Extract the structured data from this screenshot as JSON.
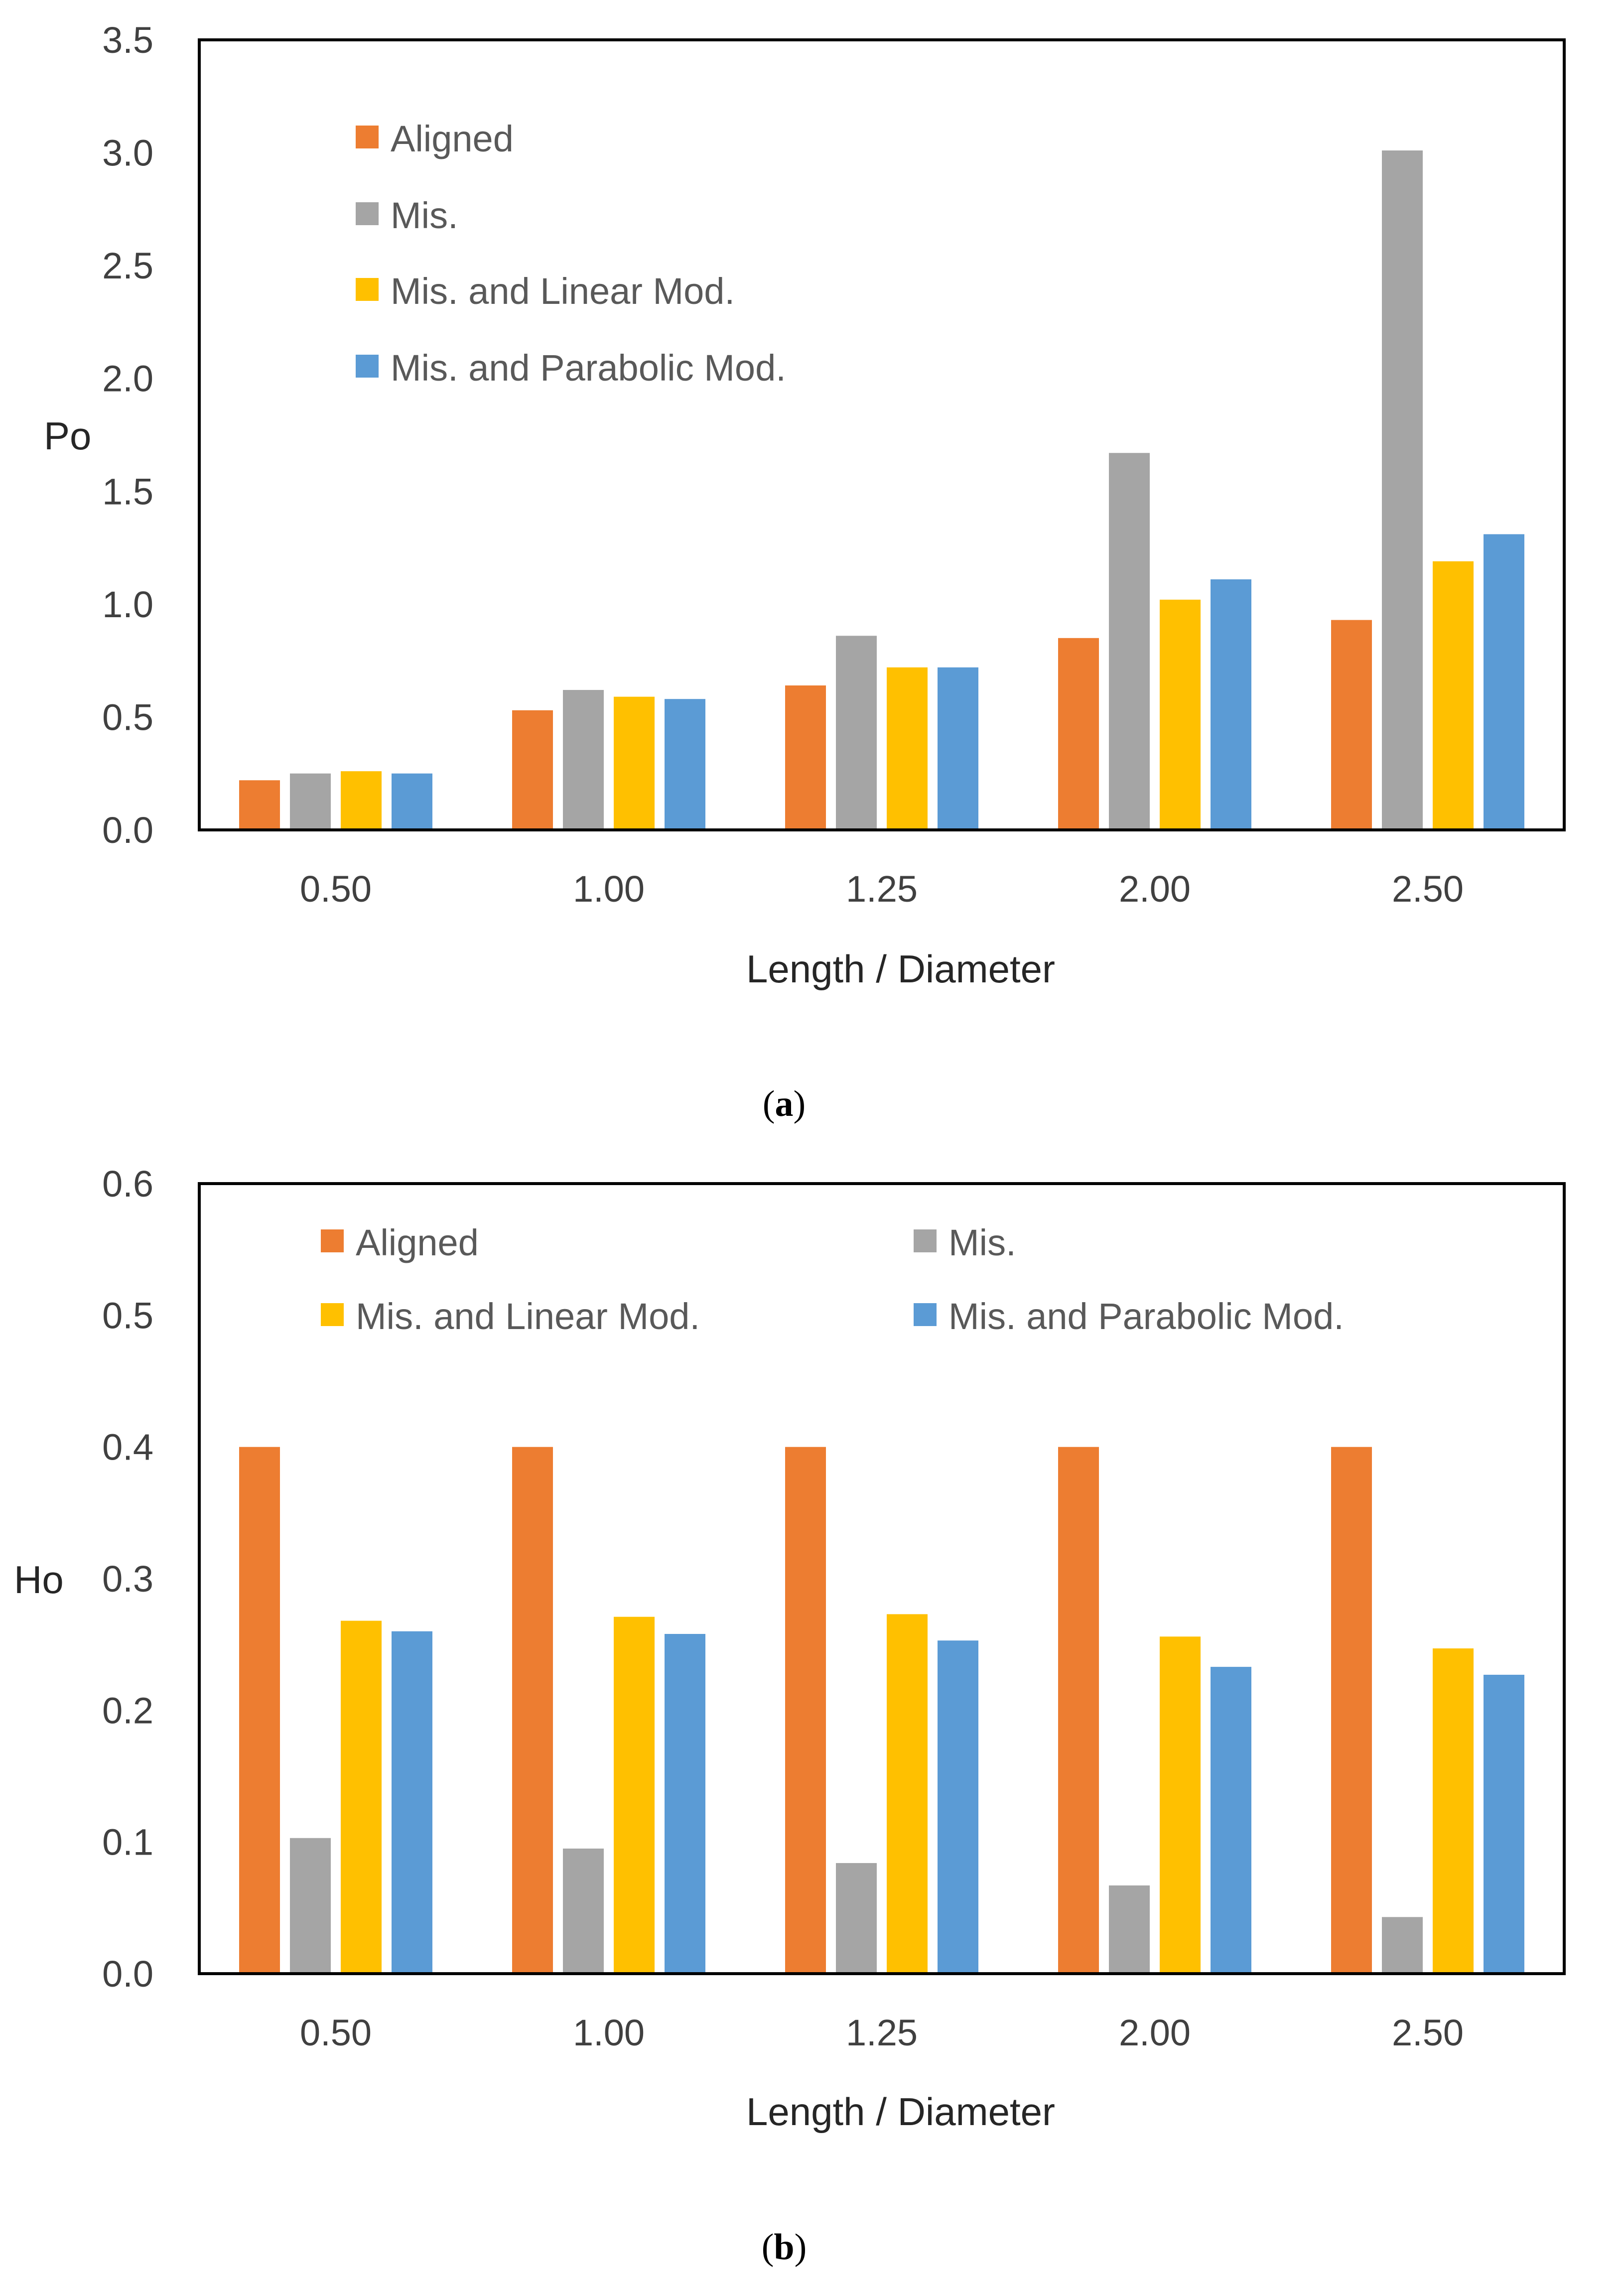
{
  "colors": {
    "Aligned": "#ED7D31",
    "Mis.": "#A5A5A5",
    "Mis. and Linear Mod.": "#FFC000",
    "Mis. and Parabolic Mod.": "#5B9BD5"
  },
  "chart_data": [
    {
      "type": "bar",
      "caption": {
        "open": "(",
        "letter": "a",
        "close": ")"
      },
      "title": "",
      "xlabel": "Length / Diameter",
      "ylabel": "Po",
      "ylim": [
        0,
        3.5
      ],
      "yticks": [
        "0.0",
        "0.5",
        "1.0",
        "1.5",
        "2.0",
        "2.5",
        "3.0",
        "3.5"
      ],
      "grid": false,
      "legend_position": "top-left",
      "categories": [
        "0.50",
        "1.00",
        "1.25",
        "2.00",
        "2.50"
      ],
      "series": [
        {
          "name": "Aligned",
          "values": [
            0.22,
            0.53,
            0.64,
            0.85,
            0.93
          ]
        },
        {
          "name": "Mis.",
          "values": [
            0.25,
            0.62,
            0.86,
            1.67,
            3.01
          ]
        },
        {
          "name": "Mis. and Linear Mod.",
          "values": [
            0.26,
            0.59,
            0.72,
            1.02,
            1.19
          ]
        },
        {
          "name": "Mis. and Parabolic Mod.",
          "values": [
            0.25,
            0.58,
            0.72,
            1.11,
            1.31
          ]
        }
      ]
    },
    {
      "type": "bar",
      "caption": {
        "open": "(",
        "letter": "b",
        "close": ")"
      },
      "title": "",
      "xlabel": "Length / Diameter",
      "ylabel": "Ho",
      "ylim": [
        0,
        0.6
      ],
      "yticks": [
        "0.0",
        "0.1",
        "0.2",
        "0.3",
        "0.4",
        "0.5",
        "0.6"
      ],
      "grid": false,
      "legend_position": "top",
      "categories": [
        "0.50",
        "1.00",
        "1.25",
        "2.00",
        "2.50"
      ],
      "series": [
        {
          "name": "Aligned",
          "values": [
            0.4,
            0.4,
            0.4,
            0.4,
            0.4
          ]
        },
        {
          "name": "Mis.",
          "values": [
            0.103,
            0.095,
            0.084,
            0.067,
            0.043
          ]
        },
        {
          "name": "Mis. and Linear Mod.",
          "values": [
            0.268,
            0.271,
            0.273,
            0.256,
            0.247
          ]
        },
        {
          "name": "Mis. and Parabolic Mod.",
          "values": [
            0.26,
            0.258,
            0.253,
            0.233,
            0.227
          ]
        }
      ]
    }
  ]
}
